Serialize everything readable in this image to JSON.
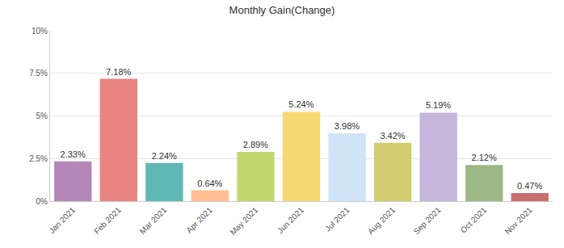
{
  "chart_data": {
    "type": "bar",
    "title": "Monthly Gain(Change)",
    "categories": [
      "Jan 2021",
      "Feb 2021",
      "Mar 2021",
      "Apr 2021",
      "May 2021",
      "Jun 2021",
      "Jul 2021",
      "Aug 2021",
      "Sep 2021",
      "Oct 2021",
      "Nov 2021"
    ],
    "values": [
      2.33,
      7.18,
      2.24,
      0.64,
      2.89,
      5.24,
      3.98,
      3.42,
      5.19,
      2.12,
      0.47
    ],
    "value_labels": [
      "2.33%",
      "7.18%",
      "2.24%",
      "0.64%",
      "2.89%",
      "5.24%",
      "3.98%",
      "3.42%",
      "5.19%",
      "2.12%",
      "0.47%"
    ],
    "colors": [
      "#b487b8",
      "#e8857f",
      "#5fb8b6",
      "#ffbf92",
      "#bfd96e",
      "#f6d872",
      "#cfe5f7",
      "#d2cd6e",
      "#c6b6dc",
      "#9cb985",
      "#c96e6e"
    ],
    "ylim": [
      0,
      10
    ],
    "yticks": [
      {
        "value": 0,
        "label": "0%"
      },
      {
        "value": 2.5,
        "label": "2.5%"
      },
      {
        "value": 5,
        "label": "5%"
      },
      {
        "value": 7.5,
        "label": "7.5%"
      },
      {
        "value": 10,
        "label": "10%"
      }
    ],
    "grid": true,
    "data_labels": true
  }
}
